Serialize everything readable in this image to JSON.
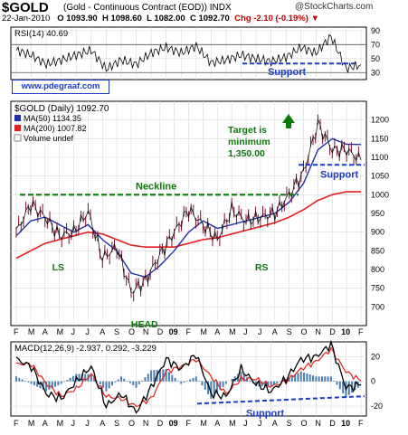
{
  "header": {
    "ticker": "$GOLD",
    "subtitle": "(Gold - Continuous Contract (EOD))  INDX",
    "brand": "@StockCharts.com",
    "date": "22-Jan-2010",
    "open": "O 1093.90",
    "high": "H 1098.60",
    "low": "L 1082.00",
    "close": "C 1092.70",
    "change": "Chg -2.10 (-0.19%)",
    "change_marker": "▼"
  },
  "watermark_url": "www.pdegraaf.com",
  "colors": {
    "price": "#000000",
    "ma50": "#1f2fa8",
    "ma200": "#e02020",
    "annotation_green": "#0a7a0a",
    "annotation_blue": "#1a3cc4",
    "macd": "#000000",
    "signal": "#e02020",
    "histogram": "#4a7fb0"
  },
  "chart_data": [
    {
      "type": "line",
      "panel": "rsi",
      "label": "RSI(14) 40.69",
      "yticks": [
        30,
        50,
        70,
        90
      ],
      "ylim": [
        20,
        95
      ],
      "ref_lines": [
        30,
        70
      ],
      "x": [
        "2008-02",
        "2008-03",
        "2008-04",
        "2008-05",
        "2008-06",
        "2008-07",
        "2008-08",
        "2008-09",
        "2008-10",
        "2008-11",
        "2008-12",
        "2009-01",
        "2009-02",
        "2009-03",
        "2009-04",
        "2009-05",
        "2009-06",
        "2009-07",
        "2009-08",
        "2009-09",
        "2009-10",
        "2009-11",
        "2009-12",
        "2010-01"
      ],
      "series": [
        {
          "values": [
            62,
            55,
            42,
            48,
            55,
            62,
            35,
            48,
            42,
            58,
            66,
            58,
            68,
            44,
            48,
            55,
            50,
            46,
            52,
            66,
            58,
            82,
            36,
            41
          ]
        }
      ],
      "annotation": "Support",
      "support_range": [
        43,
        43
      ]
    },
    {
      "type": "line",
      "panel": "price",
      "label": "$GOLD (Daily) 1092.70",
      "legend": [
        {
          "name": "MA(50) 1134.35",
          "color_key": "ma50"
        },
        {
          "name": "MA(200) 1007.82",
          "color_key": "ma200"
        },
        {
          "name": "Volume undef",
          "color_key": ""
        }
      ],
      "ylim": [
        650,
        1250
      ],
      "yticks": [
        700,
        750,
        800,
        850,
        900,
        950,
        1000,
        1050,
        1100,
        1150,
        1200
      ],
      "xtick_labels": [
        "F",
        "M",
        "A",
        "M",
        "J",
        "J",
        "A",
        "S",
        "O",
        "N",
        "D",
        "09",
        "F",
        "M",
        "A",
        "M",
        "J",
        "J",
        "A",
        "S",
        "O",
        "N",
        "D",
        "10",
        "F"
      ],
      "x": [
        "2008-02",
        "2008-03",
        "2008-04",
        "2008-05",
        "2008-06",
        "2008-07",
        "2008-08",
        "2008-09",
        "2008-10",
        "2008-11",
        "2008-12",
        "2009-01",
        "2009-02",
        "2009-03",
        "2009-04",
        "2009-05",
        "2009-06",
        "2009-07",
        "2009-08",
        "2009-09",
        "2009-10",
        "2009-11",
        "2009-12",
        "2010-01",
        "2010-01b"
      ],
      "series": [
        {
          "name": "$GOLD",
          "values": [
            900,
            975,
            940,
            890,
            900,
            955,
            830,
            860,
            740,
            770,
            840,
            900,
            960,
            920,
            880,
            960,
            930,
            940,
            950,
            1000,
            1060,
            1190,
            1120,
            1120,
            1092.7
          ]
        },
        {
          "name": "MA(50)",
          "values": [
            890,
            930,
            940,
            920,
            900,
            920,
            880,
            850,
            790,
            780,
            810,
            850,
            900,
            930,
            910,
            920,
            930,
            940,
            950,
            980,
            1030,
            1120,
            1150,
            1135,
            1134.35
          ]
        },
        {
          "name": "MA(200)",
          "values": [
            830,
            850,
            870,
            880,
            890,
            900,
            895,
            880,
            865,
            860,
            860,
            860,
            870,
            880,
            885,
            895,
            905,
            915,
            925,
            940,
            960,
            985,
            1000,
            1008,
            1007.82
          ]
        }
      ],
      "annotations": [
        {
          "text": "Neckline",
          "level": 1000
        },
        {
          "text": "LS",
          "x": "2008-05"
        },
        {
          "text": "HEAD",
          "x": "2008-11"
        },
        {
          "text": "RS",
          "x": "2009-07"
        },
        {
          "text": "Target is minimum 1,350.00",
          "x": "2009-09"
        },
        {
          "text": "Support",
          "level": 1080
        }
      ]
    },
    {
      "type": "line",
      "panel": "macd",
      "label": "MACD(12,26,9) -2.937, 0.292, -3.229",
      "ylim": [
        -28,
        32
      ],
      "yticks": [
        -20,
        0,
        20
      ],
      "xtick_labels": [
        "F",
        "M",
        "A",
        "M",
        "J",
        "J",
        "A",
        "S",
        "O",
        "N",
        "D",
        "09",
        "F",
        "M",
        "A",
        "M",
        "J",
        "J",
        "A",
        "S",
        "O",
        "N",
        "D",
        "10",
        "F"
      ],
      "x": [
        "2008-02",
        "2008-03",
        "2008-04",
        "2008-05",
        "2008-06",
        "2008-07",
        "2008-08",
        "2008-09",
        "2008-10",
        "2008-11",
        "2008-12",
        "2009-01",
        "2009-02",
        "2009-03",
        "2009-04",
        "2009-05",
        "2009-06",
        "2009-07",
        "2009-08",
        "2009-09",
        "2009-10",
        "2009-11",
        "2009-12",
        "2010-01"
      ],
      "series": [
        {
          "name": "MACD",
          "values": [
            18,
            12,
            -10,
            -14,
            0,
            12,
            -20,
            -10,
            -25,
            -5,
            18,
            10,
            22,
            -10,
            -12,
            10,
            -2,
            -8,
            2,
            18,
            20,
            30,
            -5,
            -2.937
          ]
        },
        {
          "name": "Signal",
          "values": [
            14,
            14,
            -2,
            -12,
            -6,
            6,
            -12,
            -14,
            -20,
            -14,
            8,
            12,
            18,
            4,
            -10,
            2,
            2,
            -4,
            0,
            10,
            16,
            26,
            8,
            0.292
          ]
        },
        {
          "name": "Histogram",
          "values": [
            4,
            -2,
            -8,
            -2,
            6,
            6,
            -8,
            4,
            -5,
            9,
            10,
            -2,
            4,
            -14,
            -2,
            8,
            -4,
            -4,
            2,
            8,
            4,
            4,
            -13,
            -3.229
          ]
        }
      ],
      "annotation": "Support",
      "support_range": [
        -18,
        -12
      ]
    }
  ]
}
